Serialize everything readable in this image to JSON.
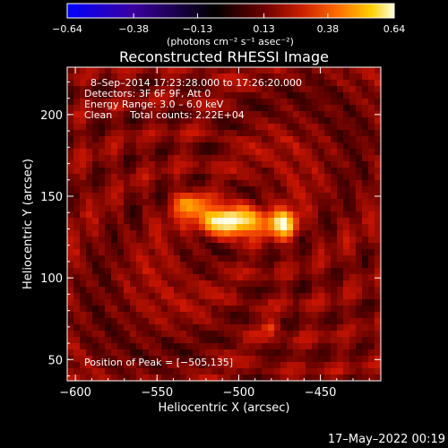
{
  "chart_data": {
    "type": "heatmap",
    "title": "Reconstructed RHESSI Image",
    "xlabel": "Heliocentric X (arcsec)",
    "ylabel": "Heliocentric Y (arcsec)",
    "xlim": [
      -605,
      -413
    ],
    "ylim": [
      37,
      229
    ],
    "xticks": [
      -600,
      -550,
      -500,
      -450
    ],
    "xtick_labels": [
      "−600",
      "−550",
      "−500",
      "−450"
    ],
    "yticks": [
      50,
      100,
      150,
      200
    ],
    "ytick_labels": [
      "50",
      "100",
      "150",
      "200"
    ],
    "colorbar": {
      "range": [
        -0.64,
        0.64
      ],
      "ticks": [
        -0.64,
        -0.38,
        -0.13,
        0.13,
        0.38,
        0.64
      ],
      "tick_labels": [
        "−0.64",
        "−0.38",
        "−0.13",
        "0.13",
        "0.38",
        "0.64"
      ],
      "unit_label": "(photons cm⁻² s⁻¹ asec⁻²)"
    },
    "annotations": {
      "time_range": "8–Sep–2014 17:23:28.000 to 17:26:20.000",
      "detectors": "Detectors: 3F 6F 9F, Att 0",
      "energy": "Energy Range: 3.0 – 6.0 keV",
      "clean": "Clean",
      "counts": "Total counts: 2.22E+04",
      "peak": "Position of Peak = [−505,135]"
    },
    "peak": {
      "x": -505,
      "y": 135
    },
    "sources": [
      {
        "x": -505,
        "y": 135,
        "sigma_x": 14,
        "sigma_y": 6,
        "amp": 0.64
      },
      {
        "x": -473,
        "y": 133,
        "sigma_x": 6,
        "sigma_y": 6,
        "amp": 0.42
      },
      {
        "x": -530,
        "y": 145,
        "sigma_x": 6,
        "sigma_y": 5,
        "amp": 0.3
      },
      {
        "x": -480,
        "y": 70,
        "sigma_x": 3,
        "sigma_y": 3,
        "amp": 0.2
      }
    ],
    "colors": {
      "background": "#000000",
      "text": "#ffffff",
      "colormap": [
        "#0000ff",
        "#2000c8",
        "#3a0090",
        "#000000",
        "#6a0000",
        "#cc2000",
        "#ff6000",
        "#ffb000",
        "#ffff80",
        "#ffffff"
      ]
    }
  },
  "timestamp": "17–May–2022 00:19"
}
